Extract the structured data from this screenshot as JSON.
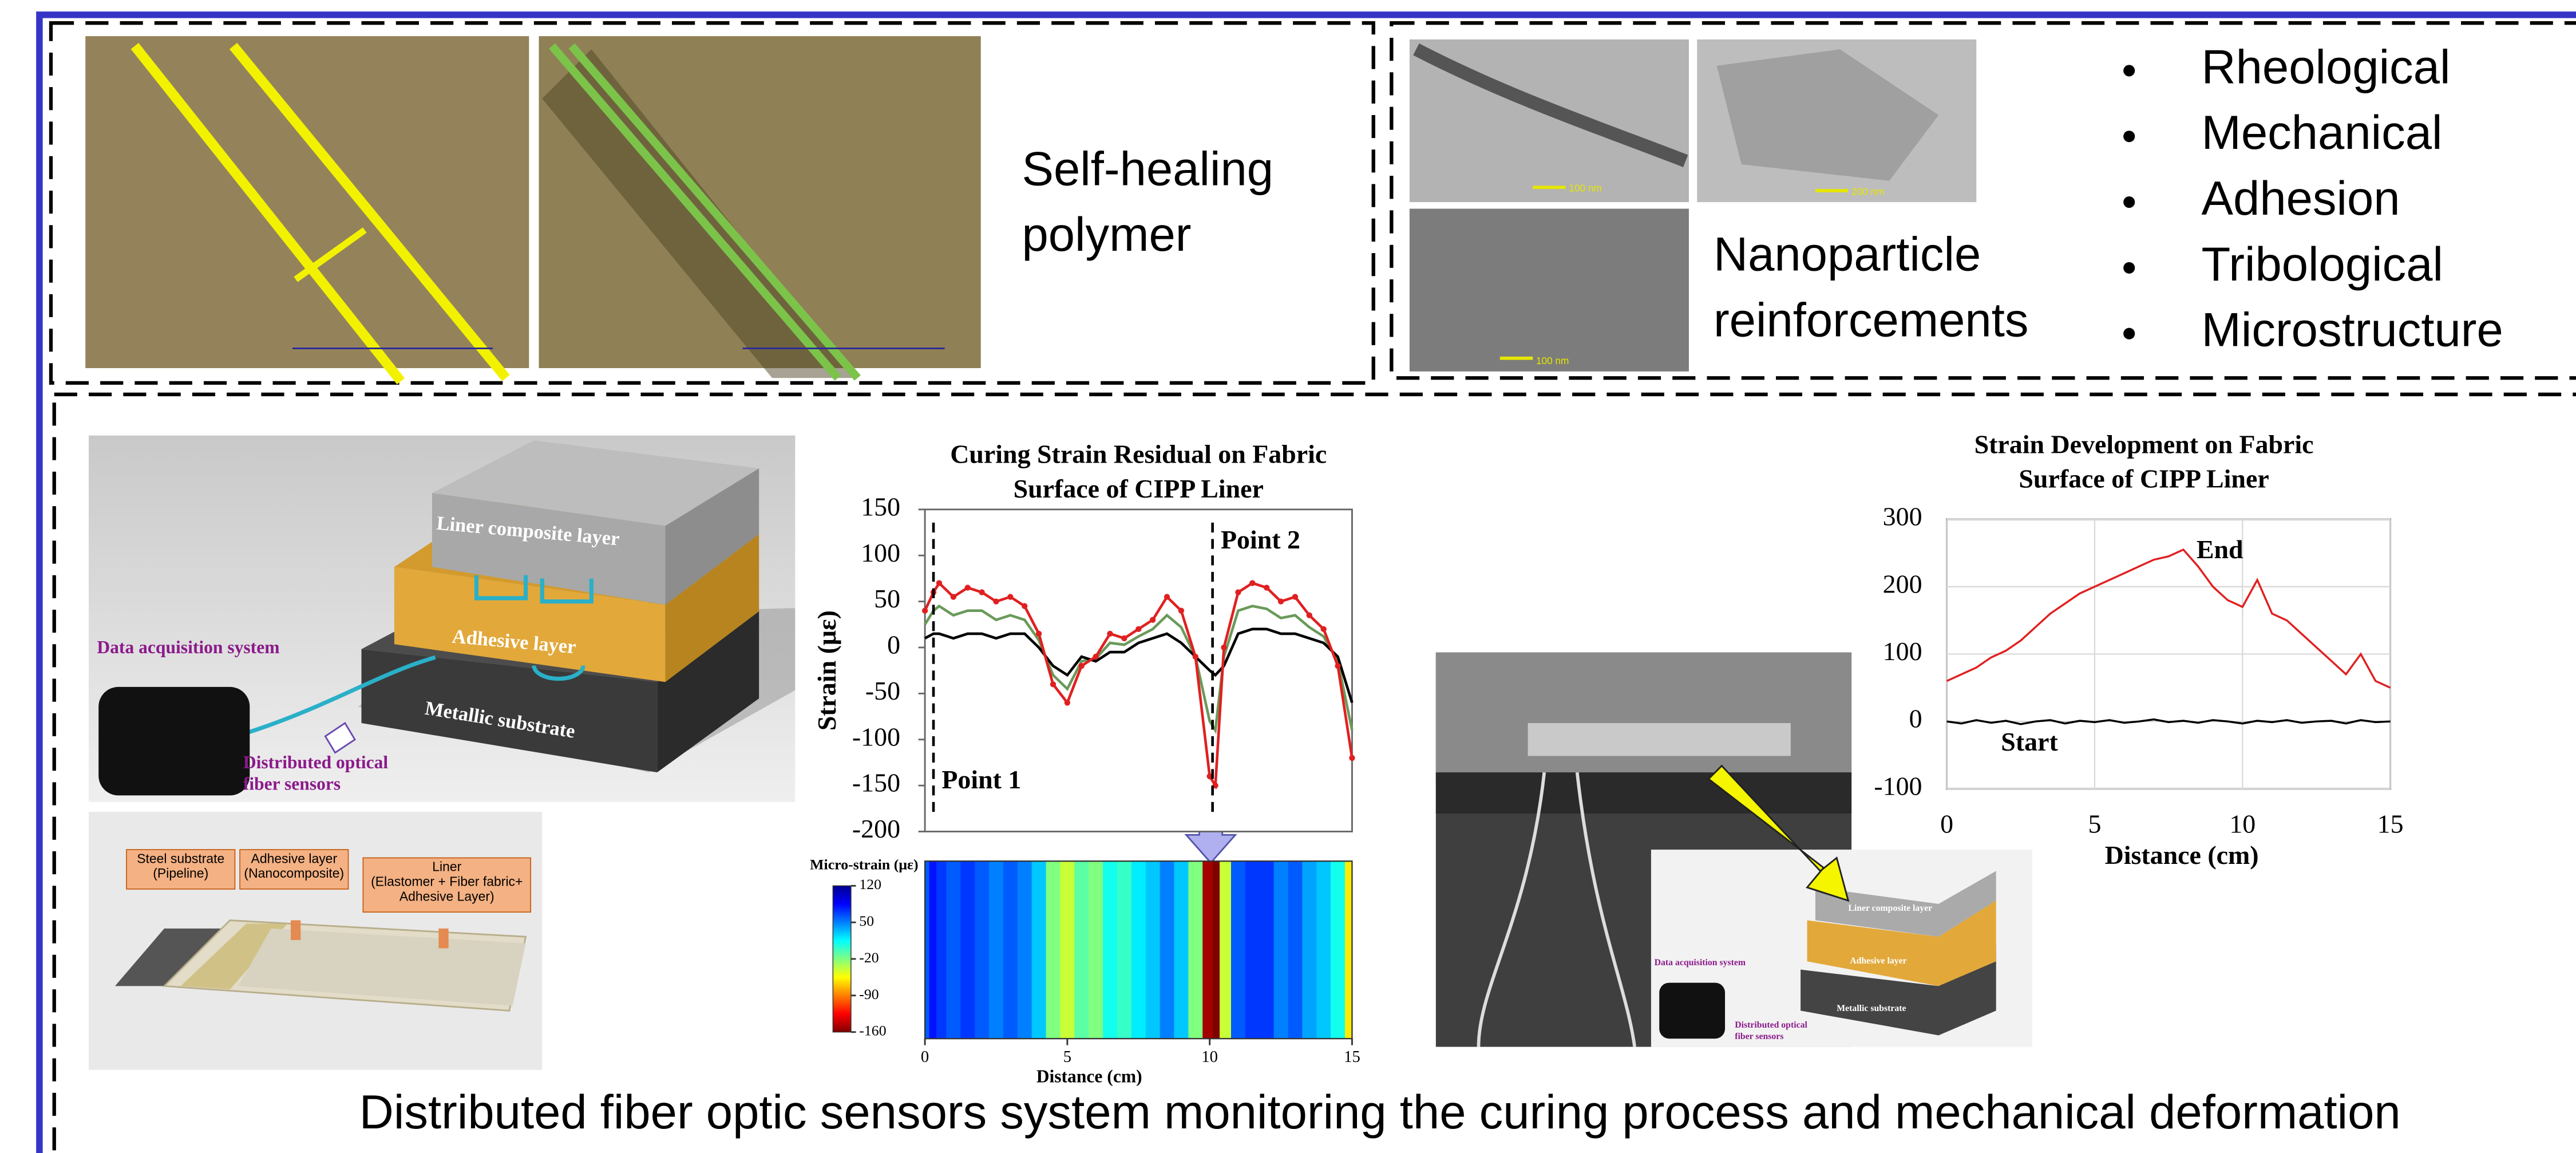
{
  "panel_top_left": {
    "label_lines": [
      "Self-healing",
      "polymer"
    ]
  },
  "panel_top_right": {
    "label_lines": [
      "Nanoparticle",
      "reinforcements"
    ],
    "scale_bars": [
      "100 nm",
      "200 nm",
      "100 nm"
    ],
    "properties": [
      "Rheological",
      "Mechanical",
      "Adhesion",
      "Tribological",
      "Microstructure"
    ]
  },
  "schematic": {
    "liner": "Liner composite layer",
    "adhesive": "Adhesive layer",
    "substrate": "Metallic substrate",
    "daq": "Data acquisition system",
    "sensors_lines": [
      "Distributed optical",
      "fiber sensors"
    ]
  },
  "photo_labels": [
    [
      "Steel substrate",
      "(Pipeline)"
    ],
    [
      "Adhesive layer",
      "(Nanocomposite)"
    ],
    [
      "Liner",
      "(Elastomer + Fiber fabric+",
      "Adhesive Layer)"
    ]
  ],
  "caption": "Distributed fiber optic sensors system monitoring the curing process and mechanical deformation",
  "chart_data": [
    {
      "type": "line",
      "title": [
        "Curing Strain Residual on Fabric",
        "Surface of CIPP Liner"
      ],
      "ylabel": "Strain (με)",
      "x": [
        0,
        0.3,
        0.5,
        1,
        1.5,
        2,
        2.5,
        3,
        3.5,
        4,
        4.5,
        5,
        5.5,
        6,
        6.5,
        7,
        7.5,
        8,
        8.5,
        9,
        9.5,
        10,
        10.2,
        10.5,
        11,
        11.5,
        12,
        12.5,
        13,
        13.5,
        14,
        14.5,
        15
      ],
      "series": [
        {
          "color": "#6a9a5a",
          "values": [
            25,
            40,
            45,
            35,
            40,
            40,
            30,
            35,
            30,
            8,
            -30,
            -45,
            -15,
            -12,
            5,
            3,
            12,
            20,
            35,
            22,
            -10,
            -80,
            -90,
            -10,
            40,
            45,
            42,
            32,
            35,
            22,
            12,
            -15,
            -90
          ]
        },
        {
          "color": "#000000",
          "values": [
            10,
            15,
            15,
            10,
            15,
            15,
            10,
            15,
            15,
            0,
            -20,
            -30,
            -10,
            -15,
            -5,
            -5,
            5,
            10,
            15,
            5,
            -10,
            -25,
            -30,
            -20,
            15,
            20,
            20,
            15,
            15,
            10,
            5,
            -10,
            -60
          ]
        },
        {
          "color": "#e02020",
          "values": [
            40,
            60,
            70,
            55,
            65,
            60,
            50,
            55,
            45,
            15,
            -40,
            -60,
            -20,
            -10,
            15,
            10,
            20,
            30,
            55,
            40,
            -10,
            -140,
            -150,
            0,
            60,
            70,
            65,
            50,
            55,
            35,
            20,
            -20,
            -120
          ]
        }
      ],
      "xlim": [
        0,
        15
      ],
      "ylim": [
        -200,
        150
      ],
      "yticks": [
        -200,
        -150,
        -100,
        -50,
        0,
        50,
        100,
        150
      ],
      "grid": false,
      "annotations": [
        {
          "text": "Point 1",
          "x": 0.3
        },
        {
          "text": "Point 2",
          "x": 10.1
        }
      ]
    },
    {
      "type": "heatmap",
      "x": [
        0,
        0.3,
        0.5,
        1,
        1.5,
        2,
        2.5,
        3,
        3.5,
        4,
        4.5,
        5,
        5.5,
        6,
        6.5,
        7,
        7.5,
        8,
        8.5,
        9,
        9.5,
        10,
        10.2,
        10.5,
        11,
        11.5,
        12,
        12.5,
        13,
        13.5,
        14,
        14.5,
        15
      ],
      "values": [
        60,
        80,
        70,
        60,
        70,
        60,
        50,
        60,
        50,
        30,
        -20,
        -40,
        -10,
        -20,
        10,
        0,
        20,
        30,
        50,
        30,
        -20,
        -150,
        -160,
        -40,
        60,
        70,
        70,
        50,
        60,
        40,
        30,
        10,
        -60
      ],
      "xlim": [
        0,
        15
      ],
      "xticks": [
        0,
        5,
        10,
        15
      ],
      "xlabel": "Distance (cm)",
      "clim": [
        -160,
        120
      ],
      "cticks": [
        120,
        50,
        -20,
        -90,
        -160
      ],
      "clabel": "Micro-strain (με)"
    },
    {
      "type": "line",
      "title": [
        "Strain Development on Fabric",
        "Surface of CIPP Liner"
      ],
      "xlabel": "Distance (cm)",
      "x": [
        0,
        0.5,
        1,
        1.5,
        2,
        2.5,
        3,
        3.5,
        4,
        4.5,
        5,
        5.5,
        6,
        6.5,
        7,
        7.5,
        8,
        8.5,
        9,
        9.5,
        10,
        10.5,
        11,
        11.5,
        12,
        12.5,
        13,
        13.5,
        14,
        14.5,
        15
      ],
      "series": [
        {
          "color": "#e02020",
          "values": [
            60,
            70,
            80,
            95,
            105,
            120,
            140,
            160,
            175,
            190,
            200,
            210,
            220,
            230,
            240,
            245,
            255,
            230,
            200,
            180,
            170,
            210,
            160,
            150,
            130,
            110,
            90,
            70,
            100,
            60,
            50
          ]
        },
        {
          "color": "#000000",
          "values": [
            0,
            -3,
            2,
            -2,
            1,
            -4,
            0,
            2,
            -3,
            1,
            -1,
            2,
            -2,
            0,
            3,
            -1,
            1,
            -2,
            2,
            0,
            -3,
            1,
            -1,
            2,
            -2,
            0,
            1,
            -3,
            2,
            -1,
            0
          ]
        }
      ],
      "xlim": [
        0,
        15
      ],
      "xticks": [
        0,
        5,
        10,
        15
      ],
      "ylim": [
        -100,
        300
      ],
      "yticks": [
        -100,
        0,
        100,
        200,
        300
      ],
      "grid": true,
      "annotations": [
        {
          "text": "End"
        },
        {
          "text": "Start"
        }
      ]
    }
  ]
}
